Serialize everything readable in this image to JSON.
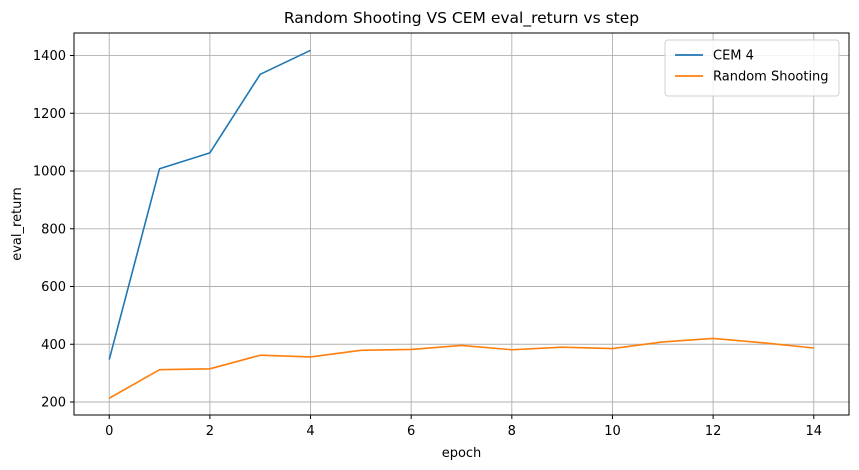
{
  "chart_data": {
    "type": "line",
    "title": "Random Shooting VS CEM eval_return vs step",
    "xlabel": "epoch",
    "ylabel": "eval_return",
    "xlim": [
      -0.7,
      14.7
    ],
    "ylim": [
      155,
      1478
    ],
    "xticks": [
      0,
      2,
      4,
      6,
      8,
      10,
      12,
      14
    ],
    "yticks": [
      200,
      400,
      600,
      800,
      1000,
      1200,
      1400
    ],
    "grid": true,
    "legend_position": "top-right",
    "series": [
      {
        "name": "CEM 4",
        "color": "#1f77b4",
        "x": [
          0,
          1,
          2,
          3,
          4
        ],
        "y": [
          347,
          1008,
          1063,
          1335,
          1418
        ]
      },
      {
        "name": "Random Shooting",
        "color": "#ff7f0e",
        "x": [
          0,
          1,
          2,
          3,
          4,
          5,
          6,
          7,
          8,
          9,
          10,
          11,
          12,
          13,
          14
        ],
        "y": [
          213,
          312,
          315,
          362,
          356,
          379,
          382,
          396,
          381,
          390,
          385,
          408,
          420,
          405,
          387
        ]
      }
    ]
  }
}
